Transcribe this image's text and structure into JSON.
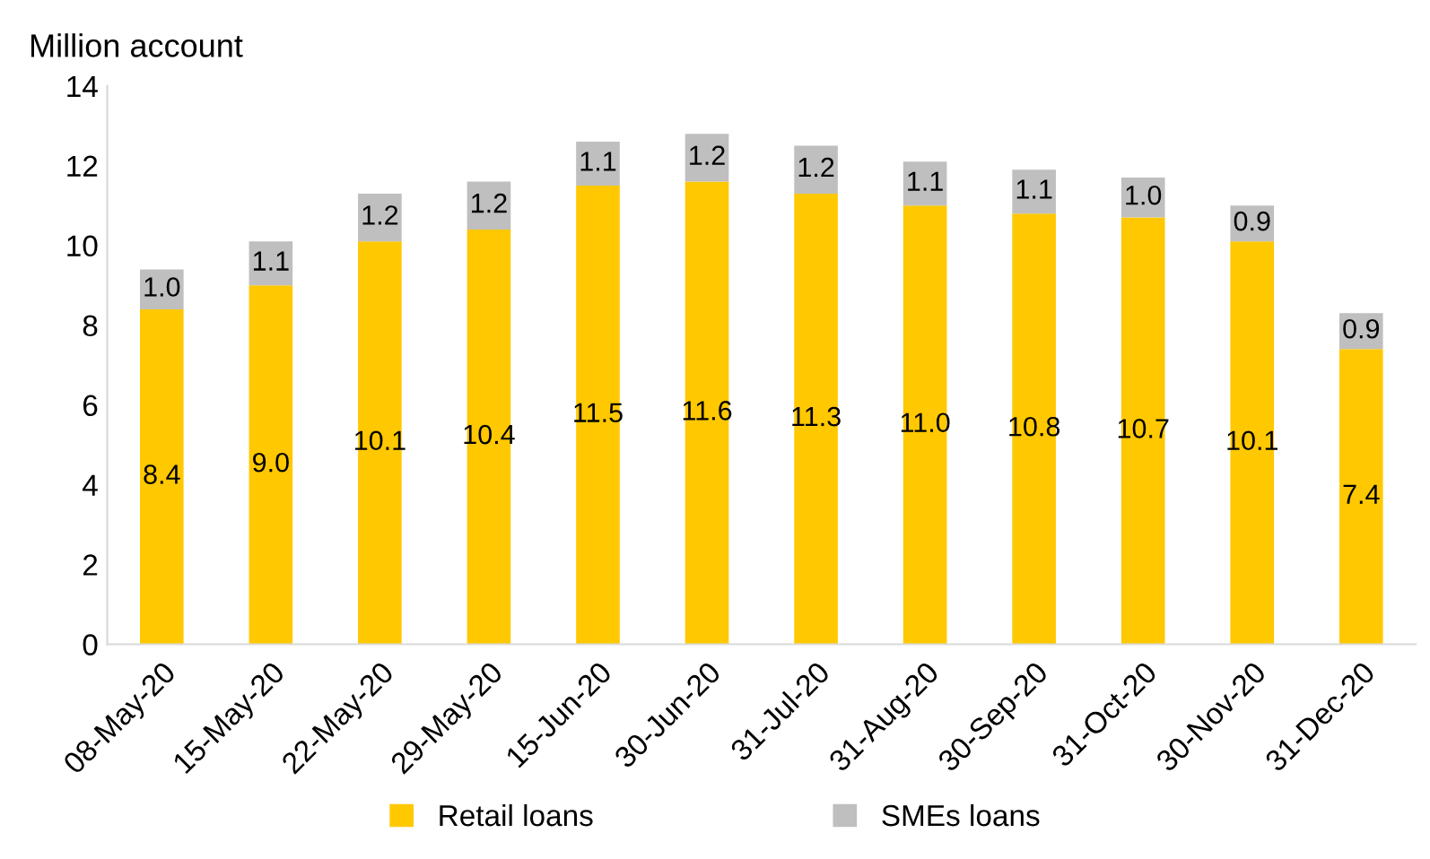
{
  "chart_data": {
    "type": "bar",
    "ylabel": "Million account",
    "stacked": true,
    "legend": "bottom",
    "grid": false,
    "categories": [
      "08-May-20",
      "15-May-20",
      "22-May-20",
      "29-May-20",
      "15-Jun-20",
      "30-Jun-20",
      "31-Jul-20",
      "31-Aug-20",
      "30-Sep-20",
      "31-Oct-20",
      "30-Nov-20",
      "31-Dec-20"
    ],
    "series": [
      {
        "name": "Retail loans",
        "color": "#ffc800",
        "values": [
          8.4,
          9.0,
          10.1,
          10.4,
          11.5,
          11.6,
          11.3,
          11.0,
          10.8,
          10.7,
          10.1,
          7.4
        ],
        "value_labels": [
          "8.4",
          "9.0",
          "10.1",
          "10.4",
          "11.5",
          "11.6",
          "11.3",
          "11.0",
          "10.8",
          "10.7",
          "10.1",
          "7.4"
        ]
      },
      {
        "name": "SMEs loans",
        "color": "#bfbfbf",
        "values": [
          1.0,
          1.1,
          1.2,
          1.2,
          1.1,
          1.2,
          1.2,
          1.1,
          1.1,
          1.0,
          0.9,
          0.9
        ],
        "value_labels": [
          "1.0",
          "1.1",
          "1.2",
          "1.2",
          "1.1",
          "1.2",
          "1.2",
          "1.1",
          "1.1",
          "1.0",
          "0.9",
          "0.9"
        ]
      }
    ],
    "ylim": [
      0,
      14
    ],
    "yticks": [
      0,
      2,
      4,
      6,
      8,
      10,
      12,
      14
    ]
  }
}
